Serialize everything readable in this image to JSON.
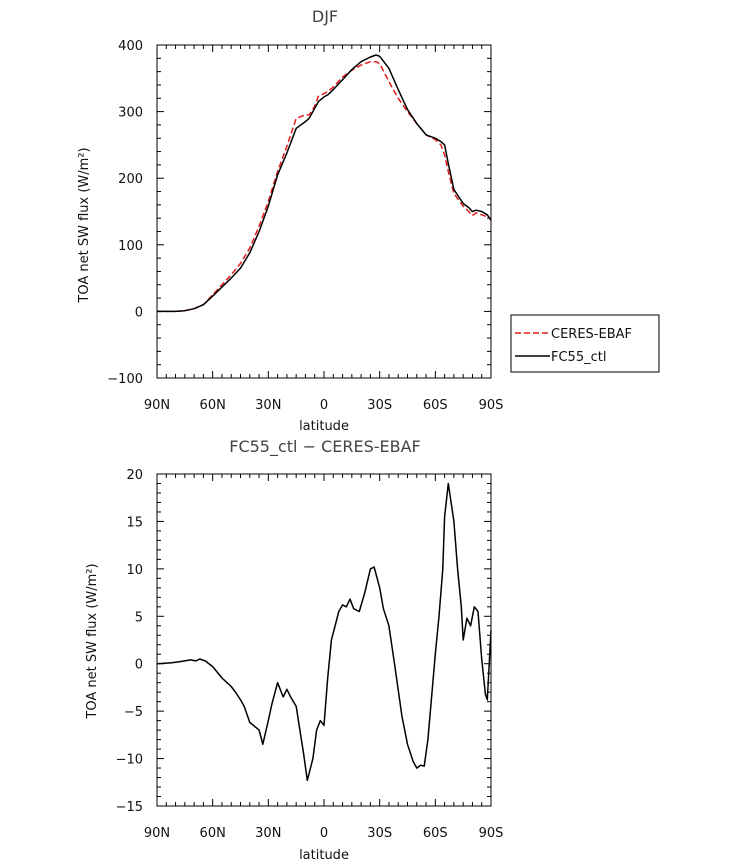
{
  "chart_data": [
    {
      "type": "line",
      "title": "DJF",
      "xlabel": "latitude",
      "ylabel": "TOA net SW flux (W/m²)",
      "xlim": [
        90,
        -90
      ],
      "ylim": [
        -100,
        400
      ],
      "x_ticks": [
        "90N",
        "60N",
        "30N",
        "0",
        "30S",
        "60S",
        "90S"
      ],
      "y_ticks": [
        "400",
        "300",
        "200",
        "100",
        "0",
        "−100"
      ],
      "legend": "right",
      "series": [
        {
          "name": "CERES-EBAF",
          "color": "#e31a1c",
          "dash": "dashed",
          "x": [
            90,
            80,
            75,
            70,
            65,
            60,
            50,
            45,
            40,
            35,
            30,
            25,
            20,
            15,
            10,
            8,
            5,
            3,
            0,
            -2,
            -5,
            -10,
            -15,
            -20,
            -25,
            -28,
            -30,
            -35,
            -40,
            -45,
            -50,
            -55,
            -60,
            -63,
            -65,
            -67,
            -70,
            -75,
            -78,
            -80,
            -82,
            -85,
            -88,
            -90
          ],
          "y": [
            0,
            0,
            1,
            4,
            10,
            25,
            55,
            72,
            95,
            128,
            165,
            210,
            248,
            290,
            295,
            295,
            308,
            323,
            327,
            330,
            337,
            352,
            362,
            370,
            375,
            375,
            372,
            345,
            320,
            300,
            282,
            265,
            258,
            250,
            235,
            210,
            177,
            158,
            150,
            144,
            148,
            145,
            142,
            138
          ]
        },
        {
          "name": "FC55_ctl",
          "color": "#000000",
          "dash": "solid",
          "x": [
            90,
            80,
            75,
            70,
            65,
            60,
            50,
            45,
            40,
            35,
            30,
            25,
            20,
            15,
            10,
            8,
            5,
            3,
            0,
            -2,
            -5,
            -10,
            -15,
            -20,
            -25,
            -28,
            -30,
            -35,
            -40,
            -45,
            -50,
            -55,
            -60,
            -63,
            -65,
            -67,
            -70,
            -75,
            -78,
            -80,
            -82,
            -85,
            -88,
            -90
          ],
          "y": [
            0,
            0,
            1,
            4,
            10,
            23,
            50,
            65,
            88,
            120,
            158,
            205,
            238,
            275,
            285,
            290,
            305,
            315,
            322,
            325,
            333,
            348,
            363,
            375,
            382,
            385,
            383,
            365,
            333,
            303,
            282,
            265,
            260,
            255,
            250,
            222,
            183,
            162,
            156,
            150,
            152,
            150,
            145,
            137
          ]
        }
      ]
    },
    {
      "type": "line",
      "title": "FC55_ctl − CERES-EBAF",
      "xlabel": "latitude",
      "ylabel": "TOA net SW flux (W/m²)",
      "xlim": [
        90,
        -90
      ],
      "ylim": [
        -15,
        20
      ],
      "x_ticks": [
        "90N",
        "60N",
        "30N",
        "0",
        "30S",
        "60S",
        "90S"
      ],
      "y_ticks": [
        "20",
        "15",
        "10",
        "5",
        "0",
        "−5",
        "−10",
        "−15"
      ],
      "series": [
        {
          "name": "",
          "color": "#000000",
          "x": [
            90,
            82,
            78,
            75,
            72,
            69,
            67,
            64,
            60,
            55,
            50,
            47,
            45,
            43,
            40,
            38,
            35,
            33,
            30,
            28,
            25,
            22,
            20,
            18,
            15,
            13,
            11,
            9,
            6,
            4,
            2,
            0,
            -2,
            -4,
            -6,
            -8,
            -10,
            -12,
            -14,
            -16,
            -19,
            -22,
            -25,
            -27,
            -30,
            -32,
            -35,
            -38,
            -42,
            -45,
            -48,
            -50,
            -52,
            -54,
            -56,
            -58,
            -60,
            -62,
            -64,
            -65,
            -67,
            -70,
            -72,
            -74,
            -75,
            -77,
            -79,
            -81,
            -83,
            -85,
            -87,
            -88,
            -90
          ],
          "y": [
            0,
            0.1,
            0.2,
            0.3,
            0.4,
            0.3,
            0.5,
            0.3,
            -0.3,
            -1.5,
            -2.4,
            -3.2,
            -3.8,
            -4.5,
            -6.2,
            -6.5,
            -7.0,
            -8.5,
            -6.0,
            -4.2,
            -2.0,
            -3.5,
            -2.7,
            -3.5,
            -4.5,
            -7.0,
            -9.5,
            -12.3,
            -10.0,
            -7.0,
            -6.0,
            -6.5,
            -1.5,
            2.5,
            4.0,
            5.5,
            6.2,
            6.0,
            6.8,
            5.8,
            5.5,
            7.5,
            10.0,
            10.2,
            8.0,
            5.8,
            4.0,
            0.0,
            -5.5,
            -8.5,
            -10.3,
            -11.0,
            -10.7,
            -10.8,
            -8.0,
            -3.5,
            1.0,
            5.0,
            10.0,
            15.5,
            19.0,
            15.0,
            10.0,
            6.0,
            2.5,
            4.8,
            4.0,
            6.0,
            5.5,
            0.5,
            -3.2,
            -3.8,
            3.5
          ]
        }
      ]
    }
  ]
}
